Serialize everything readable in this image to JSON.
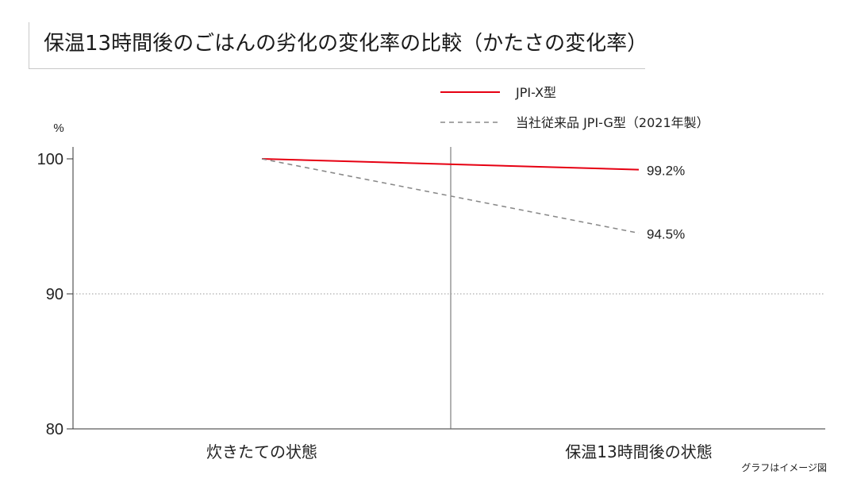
{
  "title": "保温13時間後のごはんの劣化の変化率の比較（かたさの変化率）",
  "note": "グラフはイメージ図",
  "chart_data": {
    "type": "line",
    "title": "保温13時間後のごはんの劣化の変化率の比較（かたさの変化率）",
    "ylabel": "%",
    "xlabel": "",
    "categories": [
      "炊きたての状態",
      "保温13時間後の状態"
    ],
    "yticks": [
      100,
      90,
      80
    ],
    "ylim": [
      80,
      100
    ],
    "grid_dotted_at": 90,
    "legend_position": "top-right",
    "series": [
      {
        "name": "JPI-X型",
        "color": "#e60012",
        "dash": "solid",
        "values": [
          100,
          99.2
        ],
        "end_label": "99.2%"
      },
      {
        "name": "当社従来品 JPI-G型（2021年製）",
        "color": "#888888",
        "dash": "dashed",
        "values": [
          100,
          94.5
        ],
        "end_label": "94.5%"
      }
    ]
  }
}
